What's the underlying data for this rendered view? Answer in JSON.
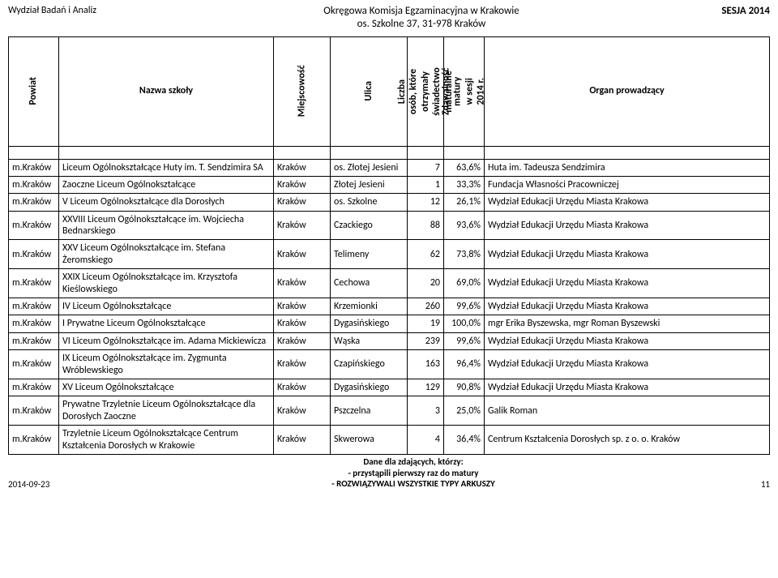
{
  "header": {
    "left": "Wydział Badań i Analiz",
    "center_line1": "Okręgowa Komisja Egzaminacyjna w Krakowie",
    "center_line2": "os. Szkolne 37, 31-978 Kraków",
    "right": "SESJA  2014"
  },
  "columns": {
    "powiat": "Powiat",
    "nazwa": "Nazwa szkoły",
    "miejscowosc": "Miejscowość",
    "ulica": "Ulica",
    "liczba": "Liczba osób, które otrzymały świadectwo maturalne",
    "zdawalnosc": "Zdawalność matury w sesji 2014 r.",
    "organ": "Organ prowadzący"
  },
  "rows": [
    {
      "p": "m.Kraków",
      "n": "Liceum Ogólnokształcące Huty im. T. Sendzimira SA",
      "m": "Kraków",
      "u": "os. Złotej Jesieni",
      "l": "7",
      "z": "63,6%",
      "o": "Huta im. Tadeusza Sendzimira"
    },
    {
      "p": "m.Kraków",
      "n": "Zaoczne Liceum Ogólnokształcące",
      "m": "Kraków",
      "u": "Złotej Jesieni",
      "l": "1",
      "z": "33,3%",
      "o": "Fundacja Własności Pracowniczej"
    },
    {
      "p": "m.Kraków",
      "n": "V Liceum Ogólnokształcące dla Dorosłych",
      "m": "Kraków",
      "u": "os. Szkolne",
      "l": "12",
      "z": "26,1%",
      "o": "Wydział Edukacji Urzędu Miasta Krakowa"
    },
    {
      "p": "m.Kraków",
      "n": "XXVIII Liceum Ogólnokształcące im. Wojciecha Bednarskiego",
      "m": "Kraków",
      "u": "Czackiego",
      "l": "88",
      "z": "93,6%",
      "o": "Wydział Edukacji Urzędu Miasta Krakowa"
    },
    {
      "p": "m.Kraków",
      "n": "XXV Liceum Ogólnokształcące im. Stefana Żeromskiego",
      "m": "Kraków",
      "u": "Telimeny",
      "l": "62",
      "z": "73,8%",
      "o": "Wydział Edukacji Urzędu Miasta Krakowa"
    },
    {
      "p": "m.Kraków",
      "n": "XXIX Liceum Ogólnokształcące im. Krzysztofa Kieślowskiego",
      "m": "Kraków",
      "u": "Cechowa",
      "l": "20",
      "z": "69,0%",
      "o": "Wydział Edukacji Urzędu Miasta Krakowa"
    },
    {
      "p": "m.Kraków",
      "n": "IV Liceum Ogólnokształcące",
      "m": "Kraków",
      "u": "Krzemionki",
      "l": "260",
      "z": "99,6%",
      "o": "Wydział Edukacji Urzędu Miasta Krakowa"
    },
    {
      "p": "m.Kraków",
      "n": "I Prywatne Liceum Ogólnokształcące",
      "m": "Kraków",
      "u": "Dygasińskiego",
      "l": "19",
      "z": "100,0%",
      "o": "mgr Erika Byszewska, mgr Roman Byszewski"
    },
    {
      "p": "m.Kraków",
      "n": "VI Liceum Ogólnokształcące im. Adama Mickiewicza",
      "m": "Kraków",
      "u": "Wąska",
      "l": "239",
      "z": "99,6%",
      "o": "Wydział Edukacji Urzędu Miasta Krakowa"
    },
    {
      "p": "m.Kraków",
      "n": "IX Liceum Ogólnokształcące im. Zygmunta Wróblewskiego",
      "m": "Kraków",
      "u": "Czapińskiego",
      "l": "163",
      "z": "96,4%",
      "o": "Wydział Edukacji Urzędu Miasta Krakowa"
    },
    {
      "p": "m.Kraków",
      "n": "XV Liceum Ogólnokształcące",
      "m": "Kraków",
      "u": "Dygasińskiego",
      "l": "129",
      "z": "90,8%",
      "o": "Wydział Edukacji Urzędu Miasta Krakowa"
    },
    {
      "p": "m.Kraków",
      "n": "Prywatne Trzyletnie Liceum Ogólnokształcące dla Dorosłych Zaoczne",
      "m": "Kraków",
      "u": "Pszczelna",
      "l": "3",
      "z": "25,0%",
      "o": "Galik Roman"
    },
    {
      "p": "m.Kraków",
      "n": "Trzyletnie Liceum Ogólnokształcące Centrum Kształcenia Dorosłych w Krakowie",
      "m": "Kraków",
      "u": "Skwerowa",
      "l": "4",
      "z": "36,4%",
      "o": "Centrum Kształcenia Dorosłych sp. z o. o. Kraków"
    }
  ],
  "footer": {
    "date": "2014-09-23",
    "line1": "Dane dla zdających, którzy:",
    "line2": "- przystąpili pierwszy raz do matury",
    "line3": "- ROZWIĄZYWALI WSZYSTKIE TYPY ARKUSZY",
    "page": "11"
  }
}
